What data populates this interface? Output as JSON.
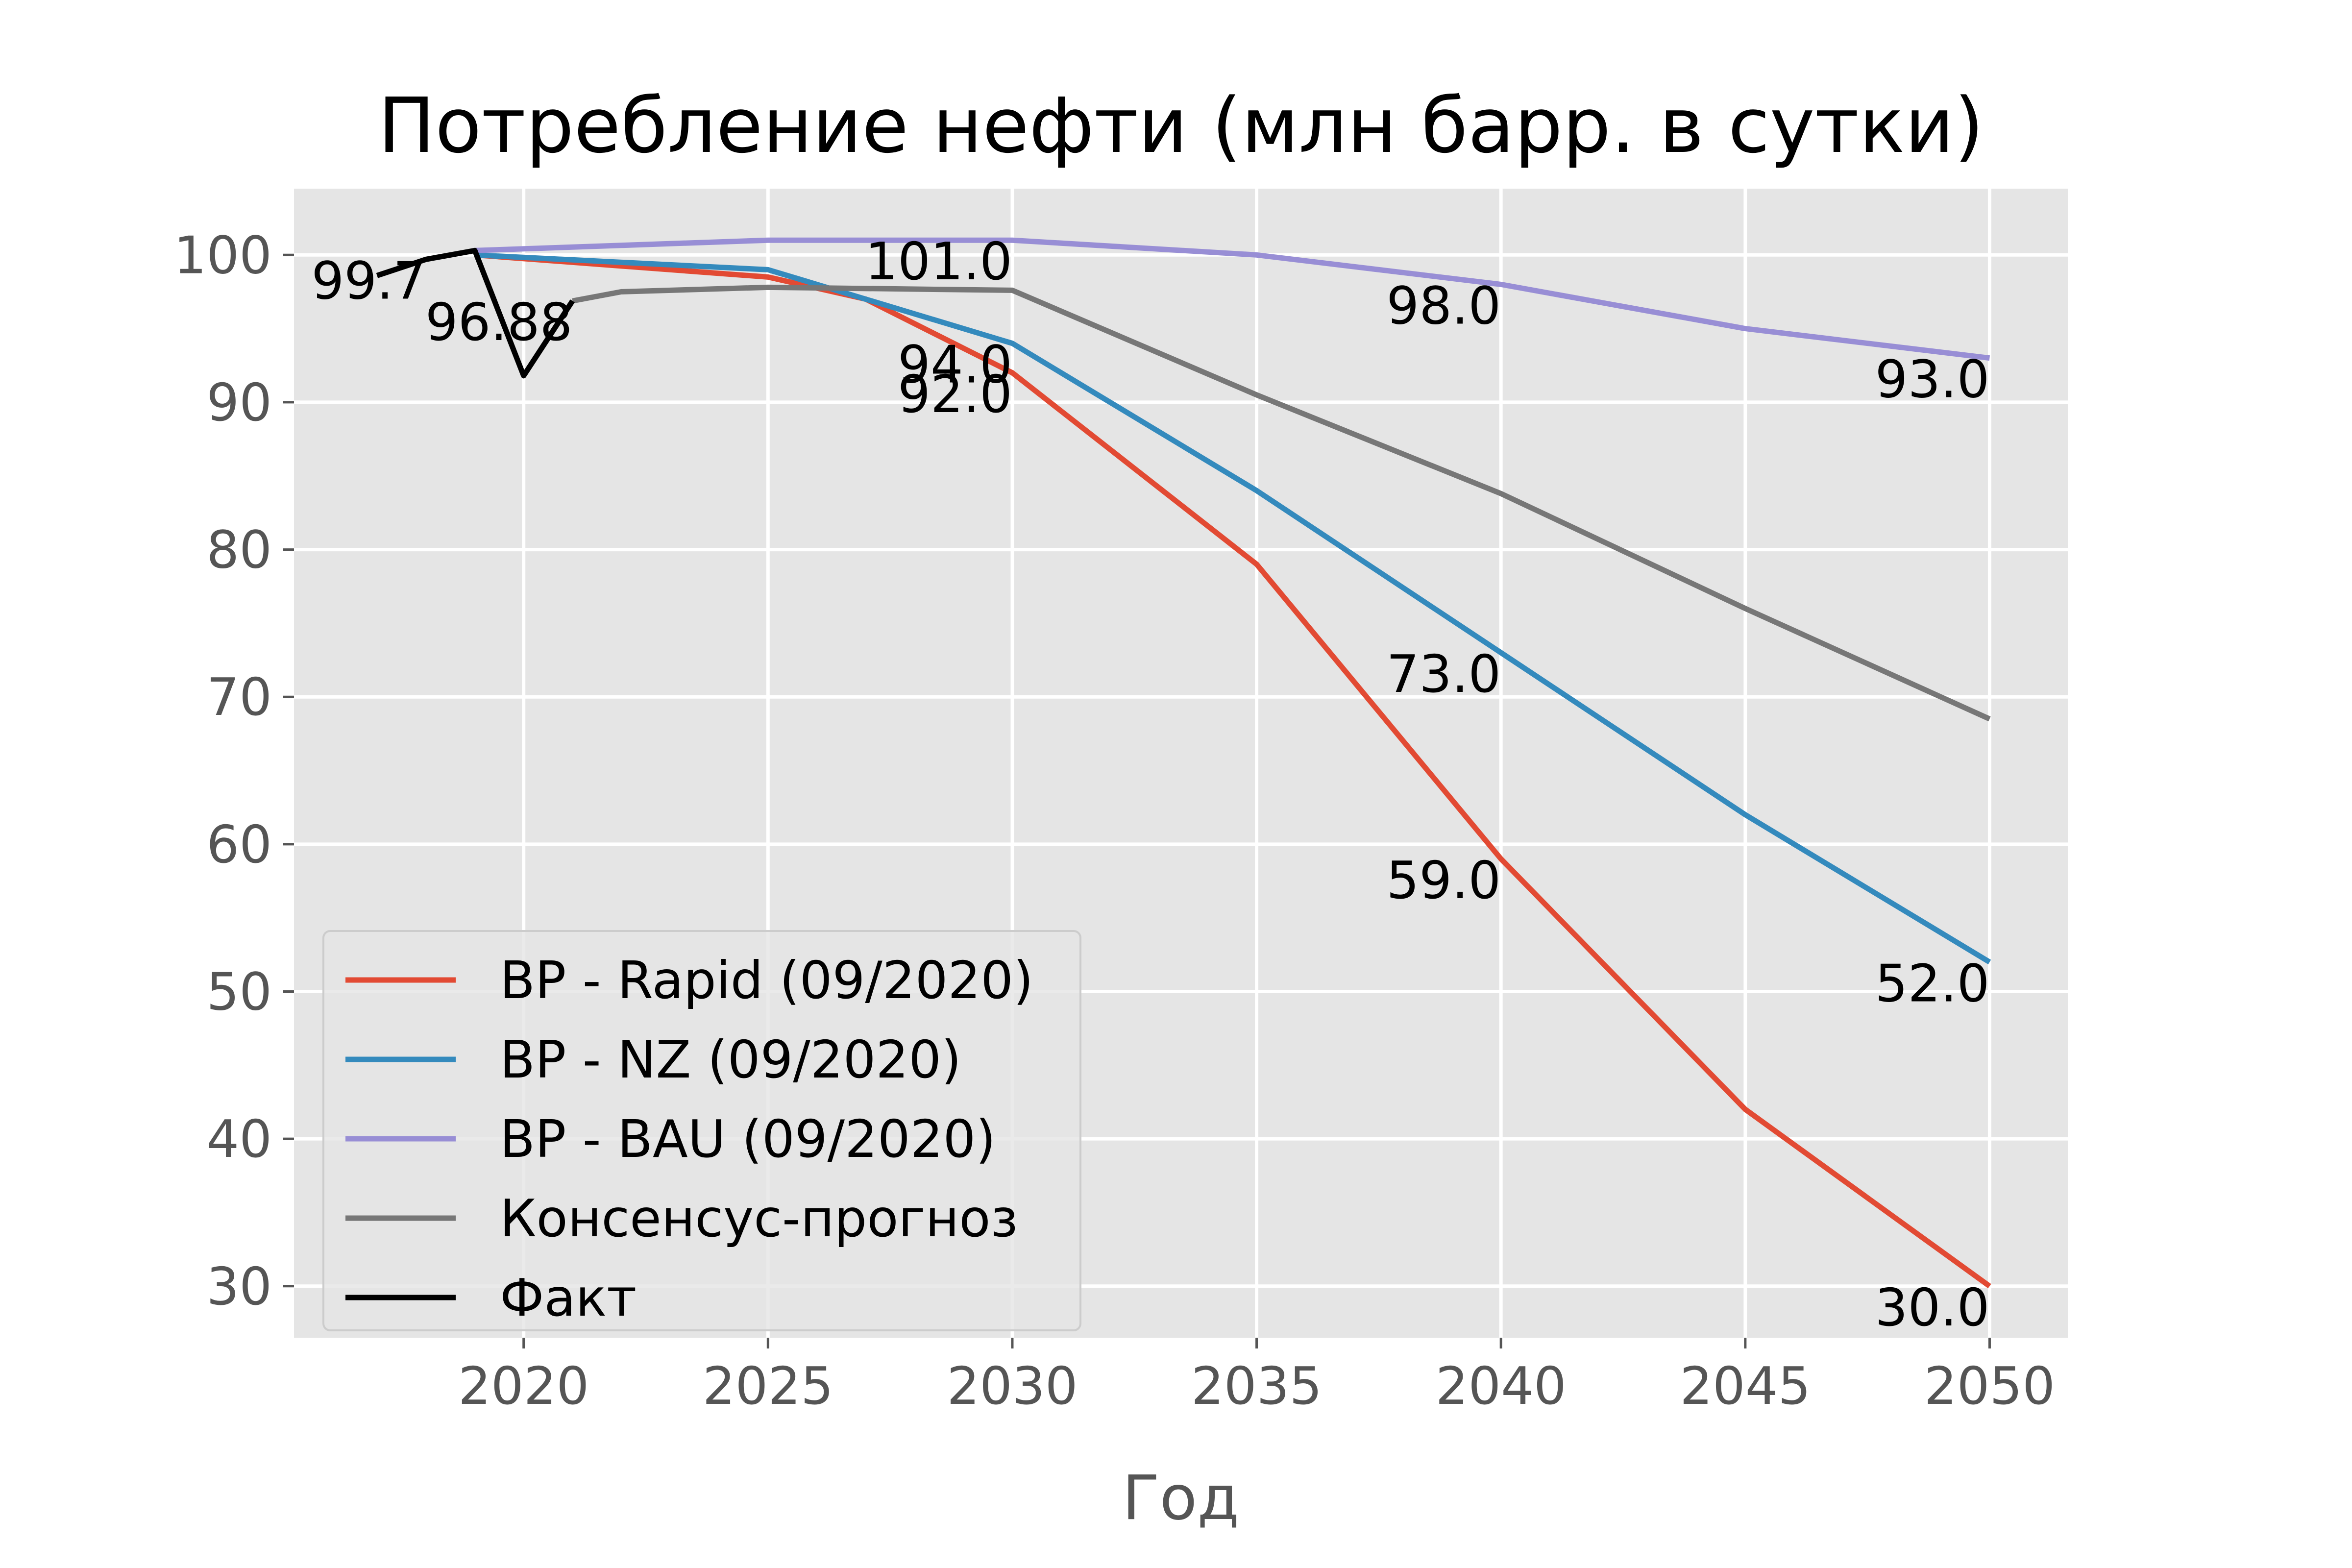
{
  "chart_data": {
    "type": "line",
    "title": "Потребление нефти (млн барр. в сутки)",
    "xlabel": "Год",
    "ylabel": "",
    "xlim": [
      2015.3,
      2051.6
    ],
    "ylim": [
      26.5,
      104.5
    ],
    "x_ticks": [
      "2020",
      "2025",
      "2030",
      "2035",
      "2040",
      "2045",
      "2050"
    ],
    "y_ticks": [
      "30",
      "40",
      "50",
      "60",
      "70",
      "80",
      "90",
      "100"
    ],
    "grid": true,
    "legend_position": "lower-left",
    "series": [
      {
        "name": "BP - Rapid (09/2020)",
        "color": "#E24A33",
        "x": [
          2019,
          2025,
          2027,
          2030,
          2035,
          2040,
          2045,
          2050
        ],
        "y": [
          100.0,
          98.5,
          97.0,
          92.0,
          79.0,
          59.0,
          42.0,
          30.0
        ]
      },
      {
        "name": "BP - NZ (09/2020)",
        "color": "#348ABD",
        "x": [
          2019,
          2025,
          2030,
          2035,
          2040,
          2045,
          2050
        ],
        "y": [
          100.0,
          99.0,
          94.0,
          84.0,
          73.0,
          62.0,
          52.0
        ]
      },
      {
        "name": "BP - BAU (09/2020)",
        "color": "#988ED5",
        "x": [
          2019,
          2025,
          2030,
          2035,
          2040,
          2045,
          2050
        ],
        "y": [
          100.3,
          101.0,
          101.0,
          100.0,
          98.0,
          95.0,
          93.0
        ]
      },
      {
        "name": "Консенсус-прогноз",
        "color": "#777777",
        "x": [
          2021,
          2022,
          2025,
          2030,
          2035,
          2040,
          2045,
          2050
        ],
        "y": [
          96.88,
          97.5,
          97.8,
          97.6,
          90.5,
          83.8,
          76.0,
          68.5
        ]
      },
      {
        "name": "Факт",
        "color": "#000000",
        "x": [
          2017,
          2018,
          2019,
          2020,
          2021
        ],
        "y": [
          98.6,
          99.7,
          100.3,
          91.8,
          96.88
        ]
      }
    ],
    "annotations": [
      {
        "text": "99.7",
        "x": 2018,
        "y": 99.7
      },
      {
        "text": "96.88",
        "x": 2021,
        "y": 96.88
      },
      {
        "text": "101.0",
        "x": 2030,
        "y": 101.0
      },
      {
        "text": "94.0",
        "x": 2030,
        "y": 94.0
      },
      {
        "text": "92.0",
        "x": 2030,
        "y": 92.0
      },
      {
        "text": "98.0",
        "x": 2040,
        "y": 98.0
      },
      {
        "text": "73.0",
        "x": 2040,
        "y": 73.0
      },
      {
        "text": "59.0",
        "x": 2040,
        "y": 59.0
      },
      {
        "text": "93.0",
        "x": 2050,
        "y": 93.0
      },
      {
        "text": "52.0",
        "x": 2050,
        "y": 52.0
      },
      {
        "text": "30.0",
        "x": 2050,
        "y": 30.0
      }
    ]
  }
}
